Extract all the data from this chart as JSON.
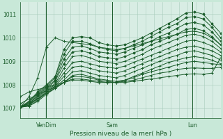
{
  "title": "Pression niveau de la mer( hPa )",
  "background_color": "#c8e8d8",
  "plot_bg_color": "#d8ede4",
  "grid_color": "#a8ccbb",
  "line_color": "#1a5c2a",
  "ylim": [
    1006.6,
    1011.5
  ],
  "yticks": [
    1007,
    1008,
    1009,
    1010,
    1011
  ],
  "xtick_labels": [
    "VenDim",
    "Sam",
    "Lun"
  ],
  "xtick_positions": [
    0.13,
    0.46,
    0.86
  ],
  "n_points": 24,
  "series": [
    [
      1007.05,
      1007.3,
      1007.7,
      1008.0,
      1008.35,
      1009.5,
      1010.0,
      1010.05,
      1010.0,
      1009.8,
      1009.7,
      1009.65,
      1009.7,
      1009.85,
      1010.0,
      1010.2,
      1010.4,
      1010.6,
      1010.8,
      1011.05,
      1011.1,
      1011.0,
      1010.6,
      1010.2
    ],
    [
      1007.05,
      1007.3,
      1007.65,
      1007.95,
      1008.3,
      1009.3,
      1009.85,
      1009.85,
      1009.75,
      1009.6,
      1009.5,
      1009.45,
      1009.55,
      1009.7,
      1009.85,
      1010.05,
      1010.25,
      1010.45,
      1010.6,
      1010.85,
      1010.9,
      1010.8,
      1010.45,
      1010.0
    ],
    [
      1007.05,
      1007.25,
      1007.6,
      1007.9,
      1008.2,
      1009.1,
      1009.6,
      1009.65,
      1009.55,
      1009.4,
      1009.35,
      1009.3,
      1009.4,
      1009.55,
      1009.7,
      1009.85,
      1010.05,
      1010.2,
      1010.4,
      1010.6,
      1010.65,
      1010.55,
      1010.25,
      1009.85
    ],
    [
      1007.05,
      1007.2,
      1007.55,
      1007.85,
      1008.15,
      1008.9,
      1009.4,
      1009.45,
      1009.35,
      1009.2,
      1009.15,
      1009.1,
      1009.2,
      1009.35,
      1009.5,
      1009.7,
      1009.85,
      1010.0,
      1010.15,
      1010.35,
      1010.4,
      1010.3,
      1010.05,
      1009.7
    ],
    [
      1007.05,
      1007.2,
      1007.5,
      1007.8,
      1008.05,
      1008.7,
      1009.2,
      1009.25,
      1009.15,
      1009.0,
      1008.95,
      1008.9,
      1009.0,
      1009.15,
      1009.3,
      1009.5,
      1009.65,
      1009.8,
      1009.95,
      1010.1,
      1010.15,
      1010.05,
      1009.85,
      1009.55
    ],
    [
      1007.05,
      1007.15,
      1007.45,
      1007.75,
      1008.0,
      1008.5,
      1008.95,
      1009.0,
      1008.9,
      1008.8,
      1008.75,
      1008.7,
      1008.8,
      1008.95,
      1009.1,
      1009.25,
      1009.4,
      1009.55,
      1009.7,
      1009.85,
      1009.9,
      1009.8,
      1009.65,
      1009.4
    ],
    [
      1007.05,
      1007.15,
      1007.4,
      1007.7,
      1007.95,
      1008.35,
      1008.75,
      1008.8,
      1008.7,
      1008.6,
      1008.55,
      1008.5,
      1008.6,
      1008.75,
      1008.9,
      1009.05,
      1009.2,
      1009.35,
      1009.5,
      1009.6,
      1009.65,
      1009.55,
      1009.45,
      1009.25
    ],
    [
      1007.05,
      1007.1,
      1007.35,
      1007.65,
      1007.9,
      1008.2,
      1008.55,
      1008.6,
      1008.5,
      1008.4,
      1008.35,
      1008.3,
      1008.4,
      1008.55,
      1008.7,
      1008.85,
      1009.0,
      1009.15,
      1009.25,
      1009.4,
      1009.45,
      1009.35,
      1009.25,
      1009.05
    ],
    [
      1007.05,
      1007.1,
      1007.3,
      1007.6,
      1007.85,
      1008.1,
      1008.4,
      1008.45,
      1008.35,
      1008.25,
      1008.2,
      1008.15,
      1008.2,
      1008.35,
      1008.5,
      1008.65,
      1008.8,
      1008.95,
      1009.05,
      1009.15,
      1009.2,
      1009.15,
      1009.05,
      1008.9
    ],
    [
      1007.1,
      1007.2,
      1007.4,
      1007.65,
      1007.85,
      1008.1,
      1008.35,
      1008.35,
      1008.3,
      1008.2,
      1008.15,
      1008.1,
      1008.2,
      1008.3,
      1008.45,
      1008.55,
      1008.65,
      1008.75,
      1008.85,
      1008.95,
      1009.0,
      1008.95,
      1008.9,
      1008.85
    ],
    [
      1007.2,
      1007.4,
      1007.6,
      1007.75,
      1007.9,
      1008.1,
      1008.25,
      1008.25,
      1008.2,
      1008.15,
      1008.1,
      1008.1,
      1008.15,
      1008.2,
      1008.3,
      1008.4,
      1008.5,
      1008.55,
      1008.65,
      1008.7,
      1008.72,
      1008.7,
      1008.7,
      1008.75
    ],
    [
      1007.5,
      1007.7,
      1007.8,
      1007.9,
      1008.0,
      1008.1,
      1008.2,
      1008.2,
      1008.15,
      1008.1,
      1008.1,
      1008.1,
      1008.1,
      1008.15,
      1008.2,
      1008.25,
      1008.3,
      1008.35,
      1008.4,
      1008.45,
      1008.47,
      1008.45,
      1008.5,
      1009.15
    ],
    [
      1007.05,
      1007.5,
      1008.3,
      1009.6,
      1010.0,
      1009.85,
      1009.8,
      1009.75,
      1009.7,
      1009.6,
      1009.55,
      1009.5,
      1009.55,
      1009.65,
      1009.75,
      1009.85,
      1009.95,
      1010.05,
      1010.15,
      1010.25,
      1010.28,
      1010.2,
      1010.0,
      1009.7
    ]
  ],
  "diamond_series": [
    0,
    1,
    2,
    3
  ],
  "linewidth": 0.7,
  "marker_size": 2.2
}
